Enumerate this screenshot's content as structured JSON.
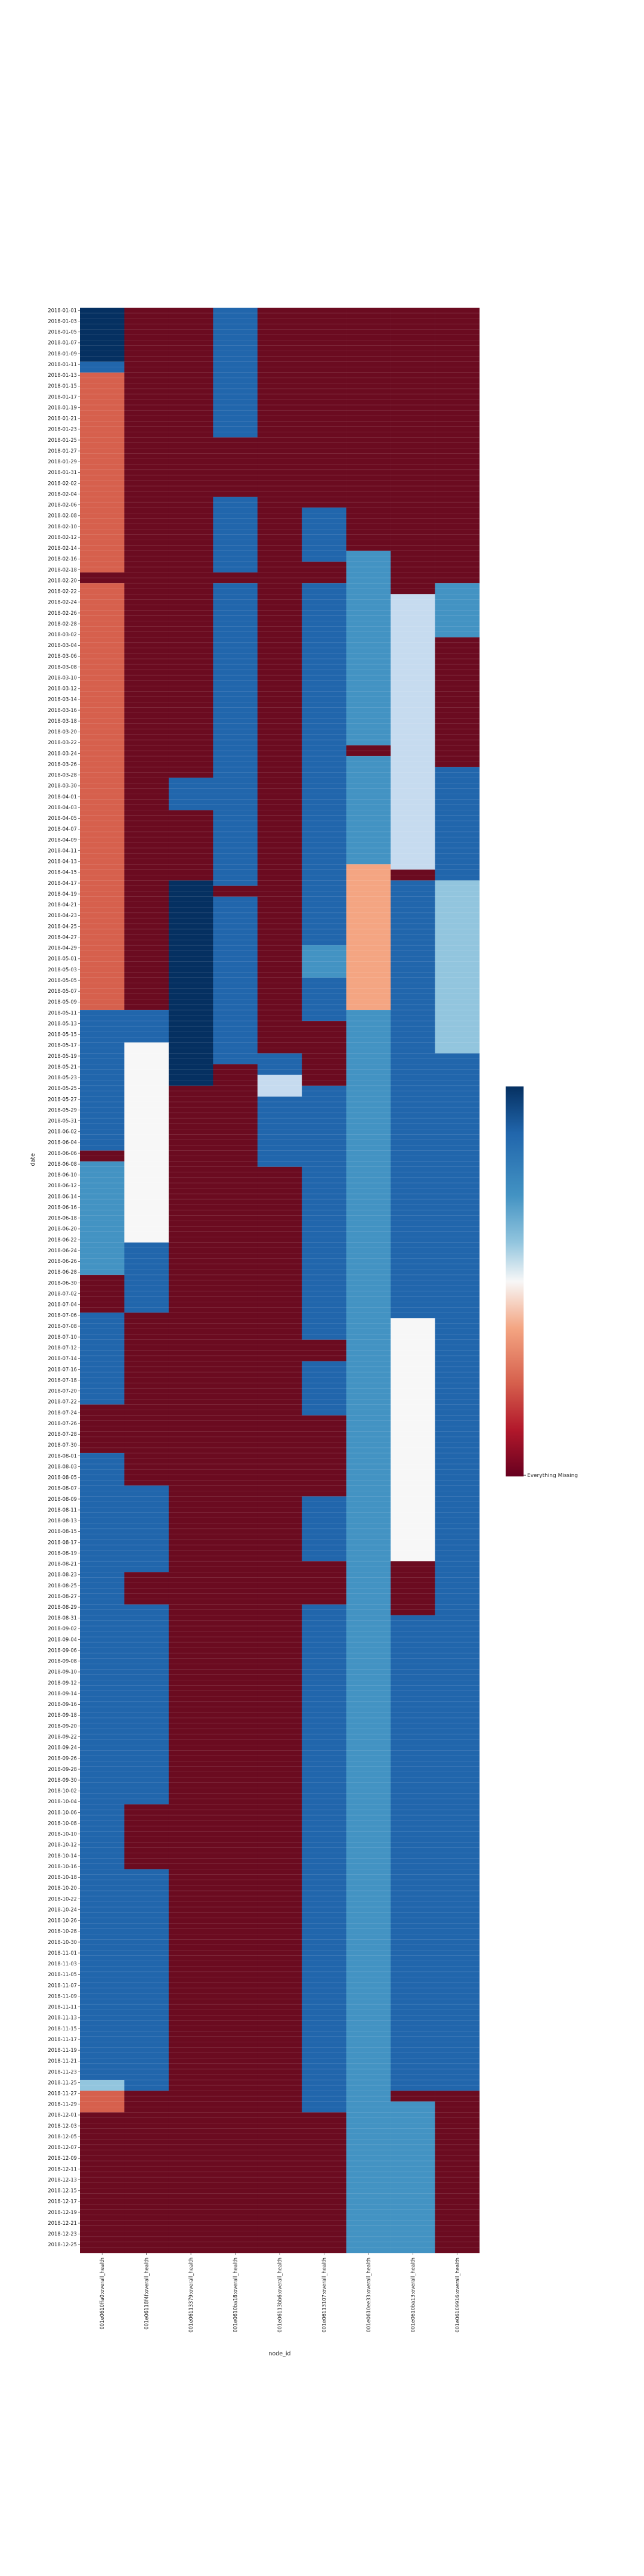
{
  "chart_data": {
    "type": "heatmap",
    "xlabel": "node_id",
    "ylabel": "date",
    "colorbar": {
      "colormap": "RdBu",
      "tick_label": "Everything Missing",
      "tick_at": "bottom"
    },
    "colors": {
      "missing": "#6b0b20",
      "low": "#d6604d",
      "mid_low": "#f4a582",
      "white": "#f7f7f7",
      "light_blue": "#c6dbef",
      "sky": "#92c5de",
      "mid_blue": "#4393c3",
      "blue": "#2166ac",
      "dark_blue": "#053061"
    },
    "columns": [
      "001e0610ffa0:overall_health",
      "001e06118f4f:overall_health",
      "001e06113379:overall_health",
      "001e0610ba18:overall_health",
      "001e06113bb6:overall_health",
      "001e06113107:overall_health",
      "001e0610ee33:overall_health",
      "001e0610ba13:overall_health",
      "001e06109916:overall_health"
    ],
    "date_range": {
      "start": "2018-01-01",
      "end": "2018-12-26",
      "row_count": 360
    },
    "y_tick_labels": [
      "2018-01-01",
      "2018-01-03",
      "2018-01-05",
      "2018-01-07",
      "2018-01-09",
      "2018-01-11",
      "2018-01-13",
      "2018-01-15",
      "2018-01-17",
      "2018-01-19",
      "2018-01-21",
      "2018-01-23",
      "2018-01-25",
      "2018-01-27",
      "2018-01-29",
      "2018-01-31",
      "2018-02-02",
      "2018-02-04",
      "2018-02-06",
      "2018-02-08",
      "2018-02-10",
      "2018-02-12",
      "2018-02-14",
      "2018-02-16",
      "2018-02-18",
      "2018-02-20",
      "2018-02-22",
      "2018-02-24",
      "2018-02-26",
      "2018-02-28",
      "2018-03-02",
      "2018-03-04",
      "2018-03-06",
      "2018-03-08",
      "2018-03-10",
      "2018-03-12",
      "2018-03-14",
      "2018-03-16",
      "2018-03-18",
      "2018-03-20",
      "2018-03-22",
      "2018-03-24",
      "2018-03-26",
      "2018-03-28",
      "2018-03-30",
      "2018-04-01",
      "2018-04-03",
      "2018-04-05",
      "2018-04-07",
      "2018-04-09",
      "2018-04-11",
      "2018-04-13",
      "2018-04-15",
      "2018-04-17",
      "2018-04-19",
      "2018-04-21",
      "2018-04-23",
      "2018-04-25",
      "2018-04-27",
      "2018-04-29",
      "2018-05-01",
      "2018-05-03",
      "2018-05-05",
      "2018-05-07",
      "2018-05-09",
      "2018-05-11",
      "2018-05-13",
      "2018-05-15",
      "2018-05-17",
      "2018-05-19",
      "2018-05-21",
      "2018-05-23",
      "2018-05-25",
      "2018-05-27",
      "2018-05-29",
      "2018-05-31",
      "2018-06-02",
      "2018-06-04",
      "2018-06-06",
      "2018-06-08",
      "2018-06-10",
      "2018-06-12",
      "2018-06-14",
      "2018-06-16",
      "2018-06-18",
      "2018-06-20",
      "2018-06-22",
      "2018-06-24",
      "2018-06-26",
      "2018-06-28",
      "2018-06-30",
      "2018-07-02",
      "2018-07-04",
      "2018-07-06",
      "2018-07-08",
      "2018-07-10",
      "2018-07-12",
      "2018-07-14",
      "2018-07-16",
      "2018-07-18",
      "2018-07-20",
      "2018-07-22",
      "2018-07-24",
      "2018-07-26",
      "2018-07-28",
      "2018-07-30",
      "2018-08-01",
      "2018-08-03",
      "2018-08-05",
      "2018-08-07",
      "2018-08-09",
      "2018-08-11",
      "2018-08-13",
      "2018-08-15",
      "2018-08-17",
      "2018-08-19",
      "2018-08-21",
      "2018-08-23",
      "2018-08-25",
      "2018-08-27",
      "2018-08-29",
      "2018-08-31",
      "2018-09-02",
      "2018-09-04",
      "2018-09-06",
      "2018-09-08",
      "2018-09-10",
      "2018-09-12",
      "2018-09-14",
      "2018-09-16",
      "2018-09-18",
      "2018-09-20",
      "2018-09-22",
      "2018-09-24",
      "2018-09-26",
      "2018-09-28",
      "2018-09-30",
      "2018-10-02",
      "2018-10-04",
      "2018-10-06",
      "2018-10-08",
      "2018-10-10",
      "2018-10-12",
      "2018-10-14",
      "2018-10-16",
      "2018-10-18",
      "2018-10-20",
      "2018-10-22",
      "2018-10-24",
      "2018-10-26",
      "2018-10-28",
      "2018-10-30",
      "2018-11-01",
      "2018-11-03",
      "2018-11-05",
      "2018-11-07",
      "2018-11-09",
      "2018-11-11",
      "2018-11-13",
      "2018-11-15",
      "2018-11-17",
      "2018-11-19",
      "2018-11-21",
      "2018-11-23",
      "2018-11-25",
      "2018-11-27",
      "2018-11-29",
      "2018-12-01",
      "2018-12-03",
      "2018-12-05",
      "2018-12-07",
      "2018-12-09",
      "2018-12-11",
      "2018-12-13",
      "2018-12-15",
      "2018-12-17",
      "2018-12-19",
      "2018-12-21",
      "2018-12-23",
      "2018-12-25"
    ],
    "segments": [
      [
        {
          "from": "2018-01-01",
          "to": "2018-01-10",
          "color": "dark_blue"
        },
        {
          "from": "2018-01-11",
          "to": "2018-01-12",
          "color": "blue"
        },
        {
          "from": "2018-01-13",
          "to": "2018-02-18",
          "color": "low"
        },
        {
          "from": "2018-02-19",
          "to": "2018-02-20",
          "color": "missing"
        },
        {
          "from": "2018-02-21",
          "to": "2018-05-10",
          "color": "low"
        },
        {
          "from": "2018-05-11",
          "to": "2018-06-05",
          "color": "blue"
        },
        {
          "from": "2018-06-06",
          "to": "2018-06-07",
          "color": "missing"
        },
        {
          "from": "2018-06-08",
          "to": "2018-06-28",
          "color": "mid_blue"
        },
        {
          "from": "2018-06-29",
          "to": "2018-07-05",
          "color": "missing"
        },
        {
          "from": "2018-07-06",
          "to": "2018-07-22",
          "color": "blue"
        },
        {
          "from": "2018-07-23",
          "to": "2018-07-31",
          "color": "missing"
        },
        {
          "from": "2018-08-01",
          "to": "2018-11-24",
          "color": "blue"
        },
        {
          "from": "2018-11-25",
          "to": "2018-11-26",
          "color": "sky"
        },
        {
          "from": "2018-11-27",
          "to": "2018-11-30",
          "color": "low"
        },
        {
          "from": "2018-12-01",
          "to": "2018-12-26",
          "color": "missing"
        }
      ],
      [
        {
          "from": "2018-01-01",
          "to": "2018-05-10",
          "color": "missing"
        },
        {
          "from": "2018-05-11",
          "to": "2018-05-16",
          "color": "blue"
        },
        {
          "from": "2018-05-17",
          "to": "2018-06-22",
          "color": "white"
        },
        {
          "from": "2018-06-23",
          "to": "2018-07-05",
          "color": "blue"
        },
        {
          "from": "2018-07-06",
          "to": "2018-08-06",
          "color": "missing"
        },
        {
          "from": "2018-08-07",
          "to": "2018-08-22",
          "color": "blue"
        },
        {
          "from": "2018-08-23",
          "to": "2018-08-28",
          "color": "missing"
        },
        {
          "from": "2018-08-29",
          "to": "2018-10-04",
          "color": "blue"
        },
        {
          "from": "2018-10-05",
          "to": "2018-10-16",
          "color": "missing"
        },
        {
          "from": "2018-10-17",
          "to": "2018-11-26",
          "color": "blue"
        },
        {
          "from": "2018-11-27",
          "to": "2018-12-26",
          "color": "missing"
        }
      ],
      [
        {
          "from": "2018-01-01",
          "to": "2018-03-28",
          "color": "missing"
        },
        {
          "from": "2018-03-29",
          "to": "2018-04-03",
          "color": "blue"
        },
        {
          "from": "2018-04-04",
          "to": "2018-04-16",
          "color": "missing"
        },
        {
          "from": "2018-04-17",
          "to": "2018-05-24",
          "color": "dark_blue"
        },
        {
          "from": "2018-05-25",
          "to": "2018-12-26",
          "color": "missing"
        }
      ],
      [
        {
          "from": "2018-01-01",
          "to": "2018-01-24",
          "color": "blue"
        },
        {
          "from": "2018-01-25",
          "to": "2018-02-04",
          "color": "missing"
        },
        {
          "from": "2018-02-05",
          "to": "2018-02-18",
          "color": "blue"
        },
        {
          "from": "2018-02-19",
          "to": "2018-02-20",
          "color": "missing"
        },
        {
          "from": "2018-02-21",
          "to": "2018-04-17",
          "color": "blue"
        },
        {
          "from": "2018-04-18",
          "to": "2018-04-19",
          "color": "missing"
        },
        {
          "from": "2018-04-20",
          "to": "2018-05-20",
          "color": "blue"
        },
        {
          "from": "2018-05-21",
          "to": "2018-12-26",
          "color": "missing"
        }
      ],
      [
        {
          "from": "2018-01-01",
          "to": "2018-05-18",
          "color": "missing"
        },
        {
          "from": "2018-05-19",
          "to": "2018-05-22",
          "color": "blue"
        },
        {
          "from": "2018-05-23",
          "to": "2018-05-26",
          "color": "light_blue"
        },
        {
          "from": "2018-05-27",
          "to": "2018-06-08",
          "color": "blue"
        },
        {
          "from": "2018-06-09",
          "to": "2018-12-26",
          "color": "missing"
        }
      ],
      [
        {
          "from": "2018-01-01",
          "to": "2018-02-06",
          "color": "missing"
        },
        {
          "from": "2018-02-07",
          "to": "2018-02-16",
          "color": "blue"
        },
        {
          "from": "2018-02-17",
          "to": "2018-02-20",
          "color": "missing"
        },
        {
          "from": "2018-02-21",
          "to": "2018-04-28",
          "color": "blue"
        },
        {
          "from": "2018-04-29",
          "to": "2018-05-04",
          "color": "mid_blue"
        },
        {
          "from": "2018-05-05",
          "to": "2018-05-12",
          "color": "blue"
        },
        {
          "from": "2018-05-13",
          "to": "2018-05-24",
          "color": "missing"
        },
        {
          "from": "2018-05-25",
          "to": "2018-07-10",
          "color": "blue"
        },
        {
          "from": "2018-07-11",
          "to": "2018-07-14",
          "color": "missing"
        },
        {
          "from": "2018-07-15",
          "to": "2018-07-24",
          "color": "blue"
        },
        {
          "from": "2018-07-25",
          "to": "2018-08-08",
          "color": "missing"
        },
        {
          "from": "2018-08-09",
          "to": "2018-08-20",
          "color": "blue"
        },
        {
          "from": "2018-08-21",
          "to": "2018-08-28",
          "color": "missing"
        },
        {
          "from": "2018-08-29",
          "to": "2018-11-30",
          "color": "blue"
        },
        {
          "from": "2018-12-01",
          "to": "2018-12-26",
          "color": "missing"
        }
      ],
      [
        {
          "from": "2018-01-01",
          "to": "2018-02-14",
          "color": "missing"
        },
        {
          "from": "2018-02-15",
          "to": "2018-02-20",
          "color": "mid_blue"
        },
        {
          "from": "2018-02-21",
          "to": "2018-03-22",
          "color": "mid_blue"
        },
        {
          "from": "2018-03-23",
          "to": "2018-03-24",
          "color": "missing"
        },
        {
          "from": "2018-03-25",
          "to": "2018-04-13",
          "color": "mid_blue"
        },
        {
          "from": "2018-04-14",
          "to": "2018-05-10",
          "color": "mid_low"
        },
        {
          "from": "2018-05-11",
          "to": "2018-12-26",
          "color": "mid_blue"
        }
      ],
      [
        {
          "from": "2018-01-01",
          "to": "2018-02-22",
          "color": "missing"
        },
        {
          "from": "2018-02-23",
          "to": "2018-04-14",
          "color": "light_blue"
        },
        {
          "from": "2018-04-15",
          "to": "2018-04-16",
          "color": "missing"
        },
        {
          "from": "2018-04-17",
          "to": "2018-07-06",
          "color": "blue"
        },
        {
          "from": "2018-07-07",
          "to": "2018-08-20",
          "color": "white"
        },
        {
          "from": "2018-08-21",
          "to": "2018-08-30",
          "color": "missing"
        },
        {
          "from": "2018-08-31",
          "to": "2018-11-26",
          "color": "blue"
        },
        {
          "from": "2018-11-27",
          "to": "2018-11-28",
          "color": "missing"
        },
        {
          "from": "2018-11-29",
          "to": "2018-12-26",
          "color": "mid_blue"
        }
      ],
      [
        {
          "from": "2018-01-01",
          "to": "2018-02-20",
          "color": "missing"
        },
        {
          "from": "2018-02-21",
          "to": "2018-03-02",
          "color": "mid_blue"
        },
        {
          "from": "2018-03-03",
          "to": "2018-03-26",
          "color": "missing"
        },
        {
          "from": "2018-03-27",
          "to": "2018-04-16",
          "color": "blue"
        },
        {
          "from": "2018-04-17",
          "to": "2018-05-18",
          "color": "sky"
        },
        {
          "from": "2018-05-19",
          "to": "2018-11-26",
          "color": "blue"
        },
        {
          "from": "2018-11-27",
          "to": "2018-12-26",
          "color": "missing"
        }
      ]
    ]
  }
}
